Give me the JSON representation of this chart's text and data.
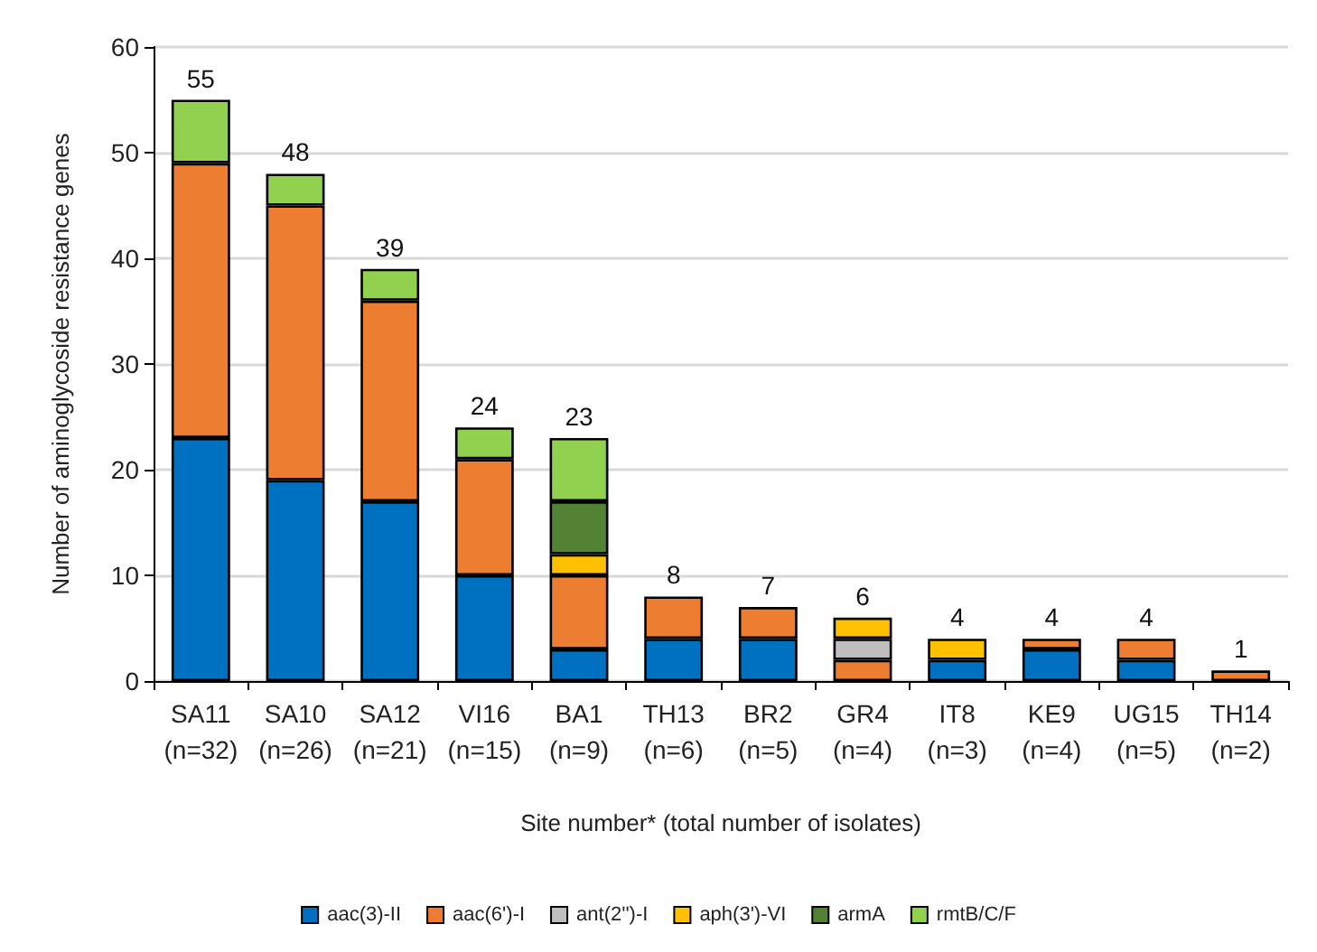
{
  "chart_data": {
    "type": "bar",
    "stacked": true,
    "xlabel": "Site number* (total number of isolates)",
    "ylabel": "Number of aminoglycoside resistance genes",
    "categories": [
      "SA11\n(n=32)",
      "SA10\n(n=26)",
      "SA12\n(n=21)",
      "VI16\n(n=15)",
      "BA1\n(n=9)",
      "TH13\n(n=6)",
      "BR2\n(n=5)",
      "GR4\n(n=4)",
      "IT8\n(n=3)",
      "KE9\n(n=4)",
      "UG15\n(n=5)",
      "TH14\n(n=2)"
    ],
    "series": [
      {
        "name": "aac(3)-II",
        "color": "#0070c0",
        "values": [
          23,
          19,
          17,
          10,
          3,
          4,
          4,
          0,
          2,
          3,
          2,
          0
        ]
      },
      {
        "name": "aac(6')-I",
        "color": "#ed7d31",
        "values": [
          26,
          26,
          19,
          11,
          7,
          4,
          3,
          2,
          0,
          1,
          2,
          1
        ]
      },
      {
        "name": "ant(2'')-I",
        "color": "#bfbfbf",
        "values": [
          0,
          0,
          0,
          0,
          0,
          0,
          0,
          2,
          0,
          0,
          0,
          0
        ]
      },
      {
        "name": "aph(3')-VI",
        "color": "#ffc000",
        "values": [
          0,
          0,
          0,
          0,
          2,
          0,
          0,
          2,
          2,
          0,
          0,
          0
        ]
      },
      {
        "name": "armA",
        "color": "#548235",
        "values": [
          0,
          0,
          0,
          0,
          5,
          0,
          0,
          0,
          0,
          0,
          0,
          0
        ]
      },
      {
        "name": "rmtB/C/F",
        "color": "#92d050",
        "values": [
          6,
          3,
          3,
          3,
          6,
          0,
          0,
          0,
          0,
          0,
          0,
          0
        ]
      }
    ],
    "totals": [
      "55",
      "48",
      "39",
      "24",
      "23",
      "8",
      "7",
      "6",
      "4",
      "4",
      "4",
      "1"
    ],
    "ylim": [
      0,
      60
    ],
    "yticks": [
      0,
      10,
      20,
      30,
      40,
      50,
      60
    ],
    "grid": "y",
    "legend": "bottom"
  }
}
